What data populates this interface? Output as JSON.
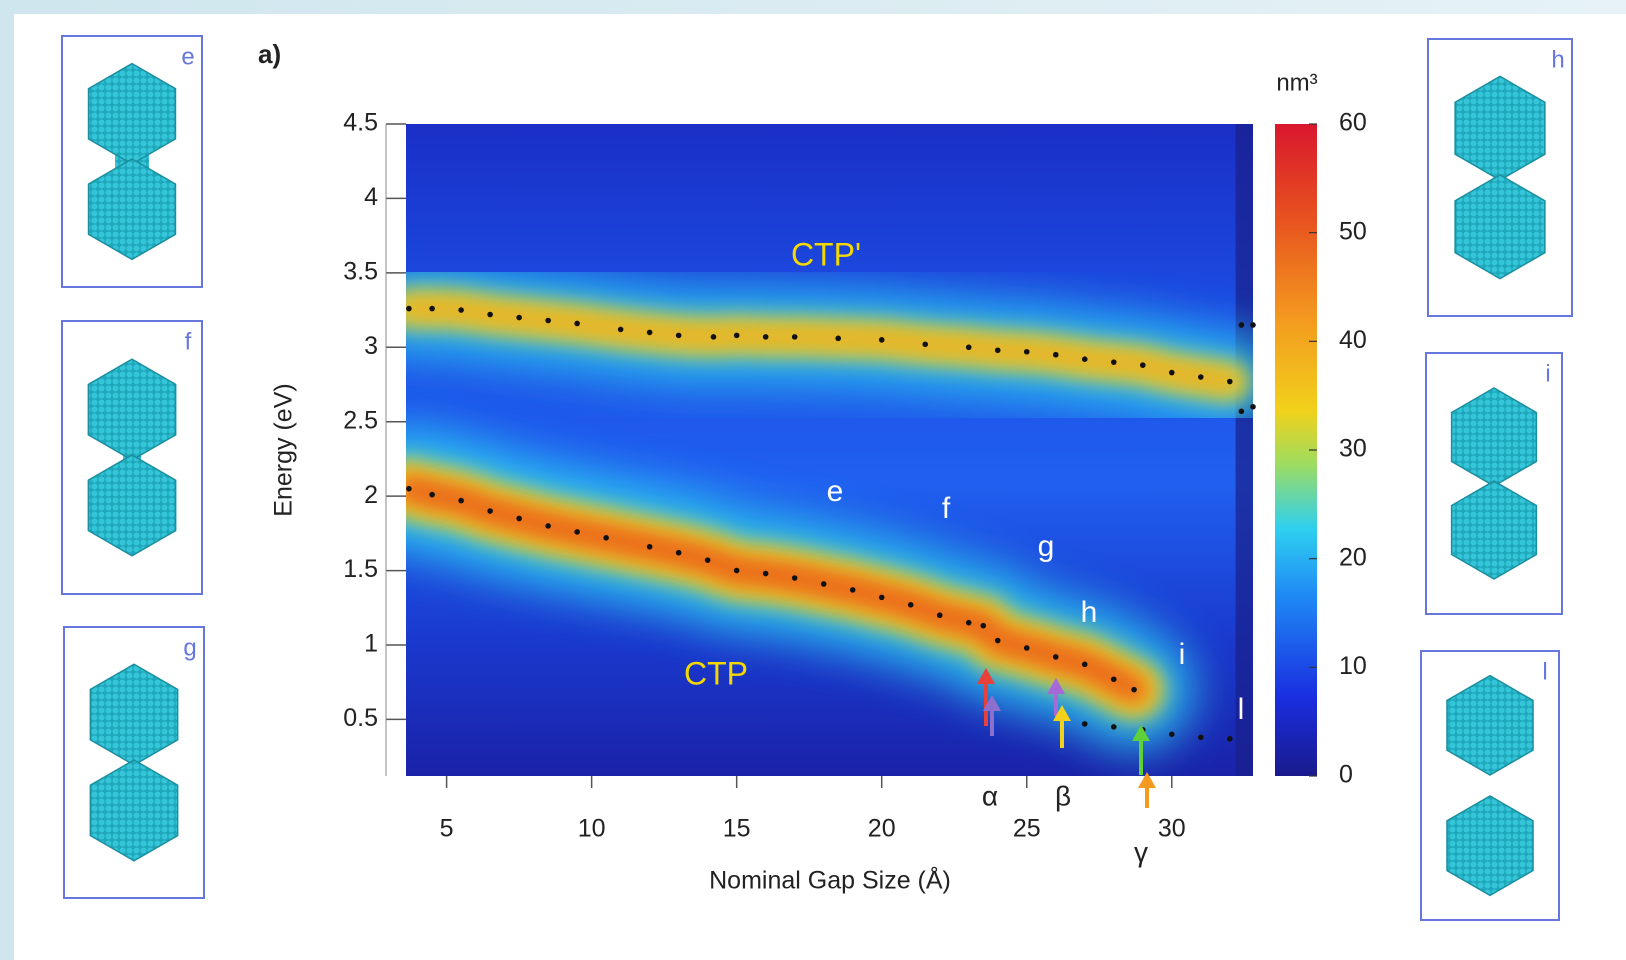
{
  "chart_data": {
    "type": "scatter",
    "panel_label": "a)",
    "xlabel": "Nominal Gap Size (Å)",
    "ylabel": "Energy (eV)",
    "xlim": [
      3.6,
      32.8
    ],
    "ylim": [
      0.12,
      4.5
    ],
    "xticks": [
      5,
      10,
      15,
      20,
      25,
      30
    ],
    "yticks": [
      0.5,
      1,
      1.5,
      2,
      2.5,
      3,
      3.5,
      4,
      4.5
    ],
    "series": [
      {
        "color": "#111111",
        "glow": true,
        "x": [
          3.7,
          4.5,
          5.5,
          6.5,
          7.5,
          8.5,
          9.5,
          11,
          12,
          13,
          14.2,
          15,
          16,
          17,
          18.5,
          20,
          21.5,
          23,
          24,
          25,
          26,
          27,
          28,
          29,
          30,
          31,
          32
        ],
        "values": [
          3.26,
          3.26,
          3.25,
          3.22,
          3.2,
          3.18,
          3.16,
          3.12,
          3.1,
          3.08,
          3.07,
          3.08,
          3.07,
          3.07,
          3.06,
          3.05,
          3.02,
          3.0,
          2.98,
          2.97,
          2.95,
          2.92,
          2.9,
          2.88,
          2.83,
          2.8,
          2.77
        ]
      },
      {
        "color": "#111111",
        "glow": true,
        "x": [
          3.7,
          4.5,
          5.5,
          6.5,
          7.5,
          8.5,
          9.5,
          10.5,
          12,
          13,
          14,
          15,
          16,
          17,
          18,
          19,
          20,
          21,
          22,
          23,
          23.5,
          24,
          25,
          26,
          27,
          28,
          28.7
        ],
        "values": [
          2.05,
          2.01,
          1.97,
          1.9,
          1.85,
          1.8,
          1.76,
          1.72,
          1.66,
          1.62,
          1.57,
          1.5,
          1.48,
          1.45,
          1.41,
          1.37,
          1.32,
          1.27,
          1.2,
          1.15,
          1.13,
          1.03,
          0.98,
          0.92,
          0.87,
          0.77,
          0.7
        ]
      },
      {
        "color": "#111111",
        "glow": false,
        "x": [
          27,
          28,
          29,
          30,
          31,
          32
        ],
        "values": [
          0.47,
          0.45,
          0.43,
          0.4,
          0.38,
          0.37
        ]
      },
      {
        "color": "#111111",
        "glow": false,
        "x": [
          32.4,
          32.8,
          32.4,
          32.8
        ],
        "values": [
          3.15,
          3.15,
          2.57,
          2.6
        ]
      }
    ],
    "annotations": [
      "CTP'",
      "CTP",
      "e",
      "f",
      "g",
      "h",
      "i",
      "l"
    ],
    "markers": [
      "α",
      "β",
      "γ"
    ],
    "colorbar": {
      "label": "nm³",
      "lim": [
        0,
        60
      ],
      "ticks": [
        0,
        10,
        20,
        30,
        40,
        50,
        60
      ]
    }
  },
  "panels": {
    "labels": [
      "e",
      "f",
      "g",
      "h",
      "i",
      "l"
    ]
  }
}
